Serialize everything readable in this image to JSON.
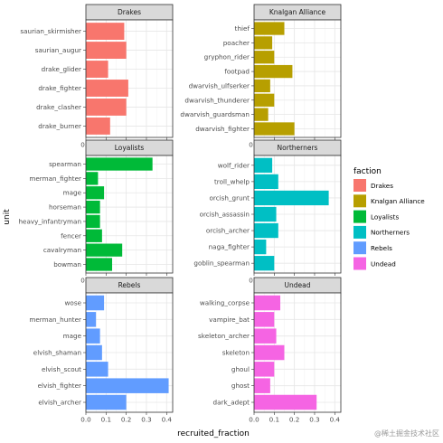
{
  "chart_data": {
    "type": "bar",
    "orientation": "horizontal",
    "facet_layout": "3 columns x 2 rows? no - 2 columns x 3 rows",
    "xlabel": "recruited_fraction",
    "ylabel": "unit",
    "xlim": [
      0,
      0.43
    ],
    "x_ticks": [
      "0.0",
      "0.1",
      "0.2",
      "0.3",
      "0.4"
    ],
    "grid": true,
    "legend": {
      "title": "faction",
      "placement": "right",
      "entries": [
        {
          "name": "Drakes",
          "color": "#F8766D"
        },
        {
          "name": "Knalgan Alliance",
          "color": "#B79F00"
        },
        {
          "name": "Loyalists",
          "color": "#00BA38"
        },
        {
          "name": "Northerners",
          "color": "#00BFC4"
        },
        {
          "name": "Rebels",
          "color": "#619CFF"
        },
        {
          "name": "Undead",
          "color": "#F564E3"
        }
      ]
    },
    "panels": [
      {
        "faction": "Drakes",
        "color": "#F8766D",
        "units": [
          "saurian_skirmisher",
          "saurian_augur",
          "drake_glider",
          "drake_fighter",
          "drake_clasher",
          "drake_burner"
        ],
        "values": [
          0.19,
          0.2,
          0.11,
          0.21,
          0.2,
          0.12
        ]
      },
      {
        "faction": "Knalgan Alliance",
        "color": "#B79F00",
        "units": [
          "thief",
          "poacher",
          "gryphon_rider",
          "footpad",
          "dwarvish_ulfserker",
          "dwarvish_thunderer",
          "dwarvish_guardsman",
          "dwarvish_fighter"
        ],
        "values": [
          0.15,
          0.09,
          0.1,
          0.19,
          0.08,
          0.1,
          0.07,
          0.2
        ]
      },
      {
        "faction": "Loyalists",
        "color": "#00BA38",
        "units": [
          "spearman",
          "merman_fighter",
          "mage",
          "horseman",
          "heavy_infantryman",
          "fencer",
          "cavalryman",
          "bowman"
        ],
        "values": [
          0.33,
          0.06,
          0.09,
          0.07,
          0.07,
          0.08,
          0.18,
          0.13
        ]
      },
      {
        "faction": "Northerners",
        "color": "#00BFC4",
        "units": [
          "wolf_rider",
          "troll_whelp",
          "orcish_grunt",
          "orcish_assassin",
          "orcish_archer",
          "naga_fighter",
          "goblin_spearman"
        ],
        "values": [
          0.09,
          0.12,
          0.37,
          0.11,
          0.12,
          0.06,
          0.1
        ]
      },
      {
        "faction": "Rebels",
        "color": "#619CFF",
        "units": [
          "wose",
          "merman_hunter",
          "mage",
          "elvish_shaman",
          "elvish_scout",
          "elvish_fighter",
          "elvish_archer"
        ],
        "values": [
          0.09,
          0.05,
          0.07,
          0.08,
          0.11,
          0.41,
          0.2
        ]
      },
      {
        "faction": "Undead",
        "color": "#F564E3",
        "units": [
          "walking_corpse",
          "vampire_bat",
          "skeleton_archer",
          "skeleton",
          "ghoul",
          "ghost",
          "dark_adept"
        ],
        "values": [
          0.13,
          0.1,
          0.11,
          0.15,
          0.1,
          0.08,
          0.31
        ]
      }
    ]
  },
  "watermark": "@稀土掘金技术社区"
}
